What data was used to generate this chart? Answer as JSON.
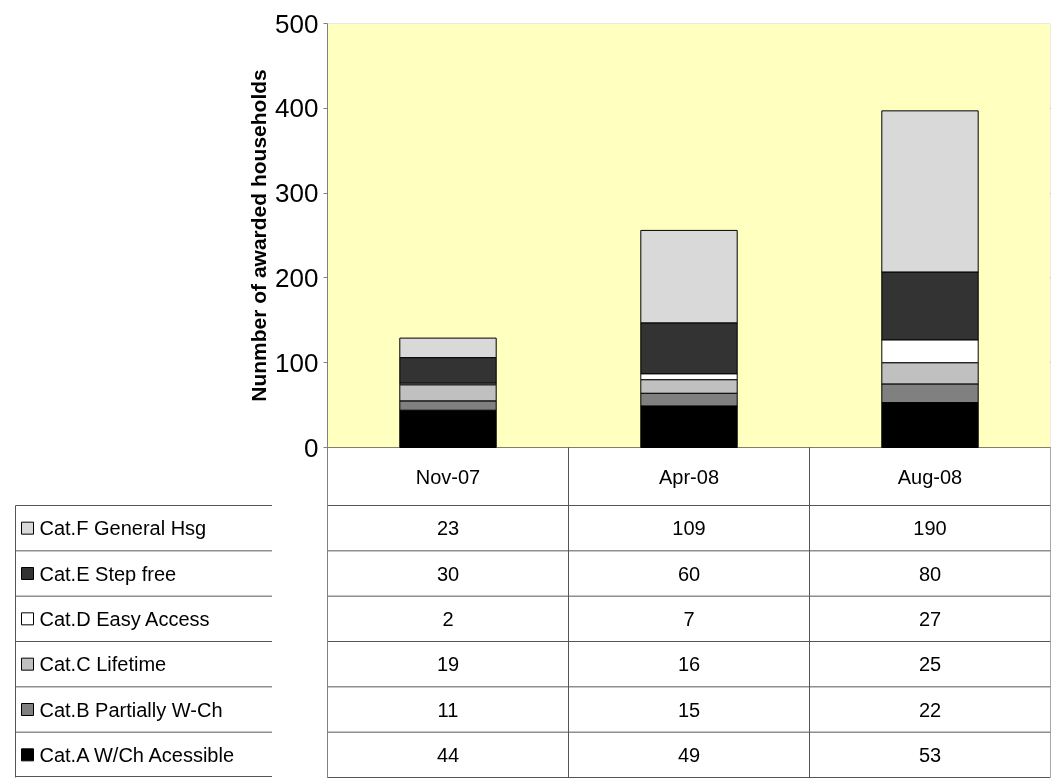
{
  "chart_data": {
    "type": "bar",
    "stacked": true,
    "ylabel": "Nunmber of awarded households",
    "categories": [
      "Nov-07",
      "Apr-08",
      "Aug-08"
    ],
    "series": [
      {
        "name": "Cat.A W/Ch Acessible",
        "color": "#000000",
        "values": [
          44,
          49,
          53
        ]
      },
      {
        "name": "Cat.B Partially W-Ch",
        "color": "#808080",
        "values": [
          11,
          15,
          22
        ]
      },
      {
        "name": "Cat.C Lifetime",
        "color": "#c0c0c0",
        "values": [
          19,
          16,
          25
        ]
      },
      {
        "name": "Cat.D Easy Access",
        "color": "#ffffff",
        "values": [
          2,
          7,
          27
        ]
      },
      {
        "name": "Cat.E Step free",
        "color": "#333333",
        "values": [
          30,
          60,
          80
        ]
      },
      {
        "name": "Cat.F General Hsg",
        "color": "#d9d9d9",
        "values": [
          23,
          109,
          190
        ]
      }
    ],
    "ylim": [
      0,
      500
    ],
    "yticks": [
      0,
      100,
      200,
      300,
      400,
      500
    ],
    "grid": "y",
    "legend": "bottom",
    "data_labels": true
  }
}
